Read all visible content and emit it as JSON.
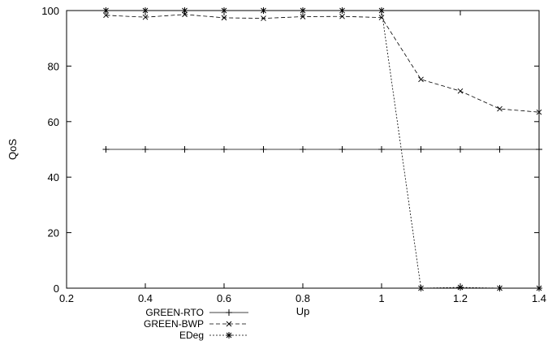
{
  "chart_data": {
    "type": "line",
    "xlabel": "Up",
    "ylabel": "QoS",
    "xlim": [
      0.2,
      1.4
    ],
    "ylim": [
      0,
      100
    ],
    "xticks": [
      "0.2",
      "0.4",
      "0.6",
      "0.8",
      "1",
      "1.2",
      "1.4"
    ],
    "yticks": [
      "0",
      "20",
      "40",
      "60",
      "80",
      "100"
    ],
    "grid": false,
    "legend_position": "bottom-left, below plot",
    "series": [
      {
        "name": "GREEN-RTO",
        "marker": "plus",
        "dash": "solid",
        "x": [
          0.3,
          0.4,
          0.5,
          0.6,
          0.7,
          0.8,
          0.9,
          1.0,
          1.1,
          1.2,
          1.3,
          1.4
        ],
        "y": [
          50,
          50,
          50,
          50,
          50,
          50,
          50,
          50,
          50,
          50,
          50,
          50
        ]
      },
      {
        "name": "GREEN-BWP",
        "marker": "cross",
        "dash": "dashed",
        "x": [
          0.3,
          0.4,
          0.5,
          0.6,
          0.7,
          0.8,
          0.9,
          1.0,
          1.1,
          1.2,
          1.3,
          1.4
        ],
        "y": [
          98.3,
          97.6,
          98.6,
          97.4,
          97.2,
          97.8,
          97.9,
          97.5,
          75.2,
          71,
          64.6,
          63.4
        ]
      },
      {
        "name": "EDeg",
        "marker": "star",
        "dash": "dotted",
        "x": [
          0.3,
          0.4,
          0.5,
          0.6,
          0.7,
          0.8,
          0.9,
          1.0,
          1.1,
          1.2,
          1.3,
          1.4
        ],
        "y": [
          100,
          100,
          100,
          100,
          100,
          100,
          100,
          100,
          0,
          0.3,
          0,
          0
        ]
      }
    ]
  }
}
